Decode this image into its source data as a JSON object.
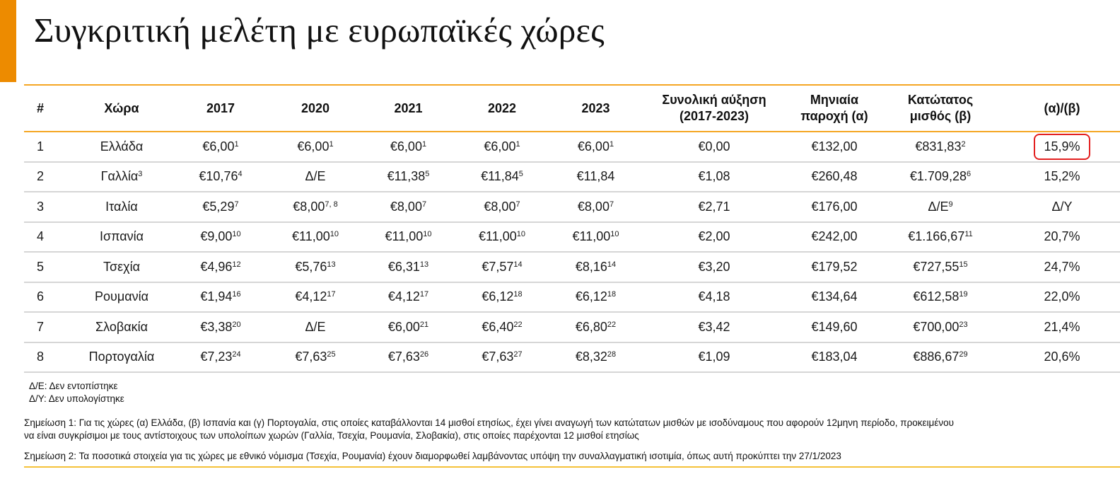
{
  "title": "Συγκριτική μελέτη με ευρωπαϊκές χώρες",
  "colors": {
    "accent": "#ED8B00",
    "header_rule": "#F5A623",
    "highlight_border": "#E32020"
  },
  "table": {
    "headers": {
      "num": "#",
      "country": "Χώρα",
      "y2017": "2017",
      "y2020": "2020",
      "y2021": "2021",
      "y2022": "2022",
      "y2023": "2023",
      "total_increase_1": "Συνολική αύξηση",
      "total_increase_2": "(2017-2023)",
      "monthly_1": "Μηνιαία",
      "monthly_2": "παροχή (α)",
      "minwage_1": "Κατώτατος",
      "minwage_2": "μισθός (β)",
      "ratio": "(α)/(β)"
    },
    "rows": [
      {
        "num": "1",
        "country": "Ελλάδα",
        "country_sup": "",
        "y2017": "€6,00",
        "y2017_sup": "1",
        "y2020": "€6,00",
        "y2020_sup": "1",
        "y2021": "€6,00",
        "y2021_sup": "1",
        "y2022": "€6,00",
        "y2022_sup": "1",
        "y2023": "€6,00",
        "y2023_sup": "1",
        "total_increase": "€0,00",
        "monthly": "€132,00",
        "minwage": "€831,83",
        "minwage_sup": "2",
        "ratio": "15,9%",
        "highlighted": true
      },
      {
        "num": "2",
        "country": "Γαλλία",
        "country_sup": "3",
        "y2017": "€10,76",
        "y2017_sup": "4",
        "y2020": "Δ/Ε",
        "y2020_sup": "",
        "y2021": "€11,38",
        "y2021_sup": "5",
        "y2022": "€11,84",
        "y2022_sup": "5",
        "y2023": "€11,84",
        "y2023_sup": "",
        "total_increase": "€1,08",
        "monthly": "€260,48",
        "minwage": "€1.709,28",
        "minwage_sup": "6",
        "ratio": "15,2%"
      },
      {
        "num": "3",
        "country": "Ιταλία",
        "country_sup": "",
        "y2017": "€5,29",
        "y2017_sup": "7",
        "y2020": "€8,00",
        "y2020_sup": "7, 8",
        "y2021": "€8,00",
        "y2021_sup": "7",
        "y2022": "€8,00",
        "y2022_sup": "7",
        "y2023": "€8,00",
        "y2023_sup": "7",
        "total_increase": "€2,71",
        "monthly": "€176,00",
        "minwage": "Δ/Ε",
        "minwage_sup": "9",
        "ratio": "Δ/Υ"
      },
      {
        "num": "4",
        "country": "Ισπανία",
        "country_sup": "",
        "y2017": "€9,00",
        "y2017_sup": "10",
        "y2020": "€11,00",
        "y2020_sup": "10",
        "y2021": "€11,00",
        "y2021_sup": "10",
        "y2022": "€11,00",
        "y2022_sup": "10",
        "y2023": "€11,00",
        "y2023_sup": "10",
        "total_increase": "€2,00",
        "monthly": "€242,00",
        "minwage": "€1.166,67",
        "minwage_sup": "11",
        "ratio": "20,7%"
      },
      {
        "num": "5",
        "country": "Τσεχία",
        "country_sup": "",
        "y2017": "€4,96",
        "y2017_sup": "12",
        "y2020": "€5,76",
        "y2020_sup": "13",
        "y2021": "€6,31",
        "y2021_sup": "13",
        "y2022": "€7,57",
        "y2022_sup": "14",
        "y2023": "€8,16",
        "y2023_sup": "14",
        "total_increase": "€3,20",
        "monthly": "€179,52",
        "minwage": "€727,55",
        "minwage_sup": "15",
        "ratio": "24,7%"
      },
      {
        "num": "6",
        "country": "Ρουμανία",
        "country_sup": "",
        "y2017": "€1,94",
        "y2017_sup": "16",
        "y2020": "€4,12",
        "y2020_sup": "17",
        "y2021": "€4,12",
        "y2021_sup": "17",
        "y2022": "€6,12",
        "y2022_sup": "18",
        "y2023": "€6,12",
        "y2023_sup": "18",
        "total_increase": "€4,18",
        "monthly": "€134,64",
        "minwage": "€612,58",
        "minwage_sup": "19",
        "ratio": "22,0%"
      },
      {
        "num": "7",
        "country": "Σλοβακία",
        "country_sup": "",
        "y2017": "€3,38",
        "y2017_sup": "20",
        "y2020": "Δ/Ε",
        "y2020_sup": "",
        "y2021": "€6,00",
        "y2021_sup": "21",
        "y2022": "€6,40",
        "y2022_sup": "22",
        "y2023": "€6,80",
        "y2023_sup": "22",
        "total_increase": "€3,42",
        "monthly": "€149,60",
        "minwage": "€700,00",
        "minwage_sup": "23",
        "ratio": "21,4%"
      },
      {
        "num": "8",
        "country": "Πορτογαλία",
        "country_sup": "",
        "y2017": "€7,23",
        "y2017_sup": "24",
        "y2020": "€7,63",
        "y2020_sup": "25",
        "y2021": "€7,63",
        "y2021_sup": "26",
        "y2022": "€7,63",
        "y2022_sup": "27",
        "y2023": "€8,32",
        "y2023_sup": "28",
        "total_increase": "€1,09",
        "monthly": "€183,04",
        "minwage": "€886,67",
        "minwage_sup": "29",
        "ratio": "20,6%"
      }
    ]
  },
  "abbreviations": [
    "Δ/Ε: Δεν εντοπίστηκε",
    "Δ/Υ: Δεν υπολογίστηκε"
  ],
  "notes": {
    "note1_line1": "Σημείωση 1: Για τις χώρες (α) Ελλάδα, (β) Ισπανία και (γ) Πορτογαλία, στις οποίες καταβάλλονται 14 μισθοί ετησίως, έχει γίνει αναγωγή των κατώτατων μισθών με ισοδύναμους που αφορούν 12μηνη περίοδο, προκειμένου",
    "note1_line2": "να είναι συγκρίσιμοι με τους αντίστοιχους των υπολοίπων χωρών (Γαλλία, Τσεχία, Ρουμανία, Σλοβακία), στις οποίες παρέχονται 12 μισθοί ετησίως",
    "note2": "Σημείωση 2: Τα ποσοτικά στοιχεία για τις χώρες με εθνικό νόμισμα (Τσεχία, Ρουμανία) έχουν διαμορφωθεί λαμβάνοντας υπόψη την συναλλαγματική ισοτιμία, όπως αυτή προκύπτει την 27/1/2023"
  }
}
